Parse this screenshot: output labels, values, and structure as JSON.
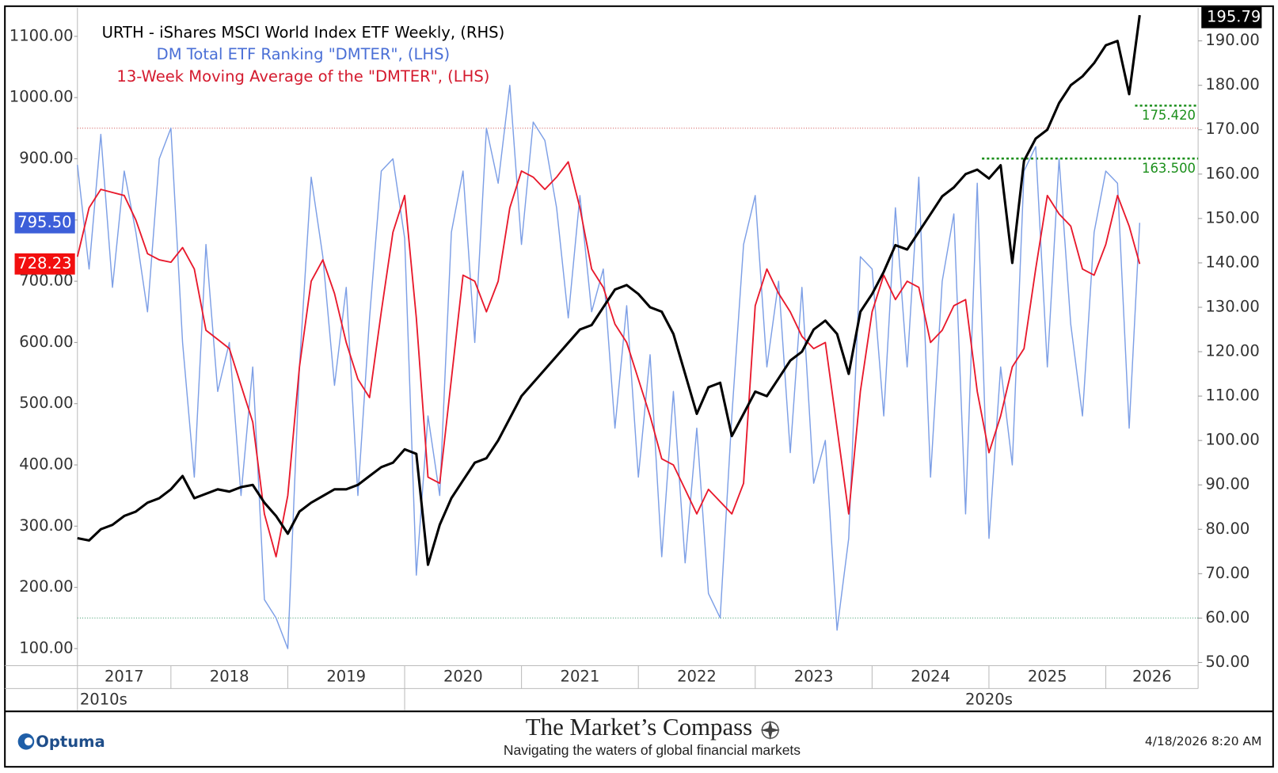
{
  "chart_data": {
    "type": "line",
    "x": [
      2017.2,
      2017.3,
      2017.4,
      2017.5,
      2017.6,
      2017.7,
      2017.8,
      2017.9,
      2018.0,
      2018.1,
      2018.2,
      2018.3,
      2018.4,
      2018.5,
      2018.6,
      2018.7,
      2018.8,
      2018.9,
      2019.0,
      2019.1,
      2019.2,
      2019.3,
      2019.4,
      2019.5,
      2019.6,
      2019.7,
      2019.8,
      2019.9,
      2020.0,
      2020.1,
      2020.2,
      2020.3,
      2020.4,
      2020.5,
      2020.6,
      2020.7,
      2020.8,
      2020.9,
      2021.0,
      2021.1,
      2021.2,
      2021.3,
      2021.4,
      2021.5,
      2021.6,
      2021.7,
      2021.8,
      2021.9,
      2022.0,
      2022.1,
      2022.2,
      2022.3,
      2022.4,
      2022.5,
      2022.6,
      2022.7,
      2022.8,
      2022.9,
      2023.0,
      2023.1,
      2023.2,
      2023.3,
      2023.4,
      2023.5,
      2023.6,
      2023.7,
      2023.8,
      2023.9,
      2024.0,
      2024.1,
      2024.2,
      2024.3,
      2024.4,
      2024.5,
      2024.6,
      2024.7,
      2024.8,
      2024.9,
      2025.0,
      2025.1,
      2025.2,
      2025.3,
      2025.4,
      2025.5,
      2025.6,
      2025.7,
      2025.8,
      2025.9,
      2026.0,
      2026.1,
      2026.2,
      2026.29
    ],
    "series": [
      {
        "name": "DM Total ETF Ranking \"DMTER\", (LHS)",
        "color": "#7d9fe6",
        "text_color": "#4a6fd6",
        "axis": "y",
        "width": 1.4,
        "last_label": "795.50",
        "label_box": "#3d5fd9",
        "values": [
          890,
          720,
          940,
          690,
          880,
          780,
          650,
          900,
          950,
          600,
          380,
          760,
          520,
          600,
          350,
          560,
          180,
          150,
          100,
          560,
          870,
          740,
          530,
          690,
          350,
          640,
          880,
          900,
          770,
          220,
          480,
          350,
          780,
          880,
          600,
          950,
          860,
          1020,
          760,
          960,
          930,
          820,
          640,
          840,
          650,
          720,
          460,
          660,
          380,
          580,
          250,
          520,
          240,
          460,
          190,
          150,
          480,
          760,
          840,
          560,
          700,
          420,
          690,
          370,
          440,
          130,
          280,
          740,
          720,
          480,
          820,
          560,
          870,
          380,
          700,
          810,
          320,
          860,
          280,
          560,
          400,
          880,
          920,
          560,
          900,
          630,
          480,
          780,
          880,
          860,
          460,
          795.5
        ]
      },
      {
        "name": "13-Week Moving Average of the \"DMTER\", (LHS)",
        "color": "#e8192c",
        "text_color": "#d41a2e",
        "axis": "y",
        "width": 1.8,
        "last_label": "728.23",
        "label_box": "#f20f0f",
        "values": [
          740,
          820,
          850,
          845,
          840,
          800,
          745,
          735,
          731,
          755,
          720,
          620,
          605,
          590,
          530,
          470,
          320,
          250,
          350,
          560,
          700,
          735,
          680,
          600,
          540,
          510,
          650,
          780,
          840,
          640,
          380,
          370,
          540,
          710,
          700,
          650,
          700,
          820,
          880,
          870,
          850,
          870,
          895,
          820,
          720,
          690,
          630,
          600,
          540,
          480,
          410,
          400,
          360,
          320,
          360,
          340,
          320,
          370,
          660,
          720,
          680,
          650,
          610,
          590,
          600,
          460,
          320,
          520,
          650,
          710,
          670,
          700,
          690,
          600,
          620,
          660,
          670,
          520,
          420,
          480,
          560,
          590,
          720,
          840,
          810,
          790,
          720,
          710,
          760,
          840,
          790,
          728.23
        ]
      },
      {
        "name": "URTH - iShares MSCI World Index ETF Weekly, (RHS)",
        "color": "#000000",
        "text_color": "#000000",
        "axis": "y2",
        "width": 3,
        "last_label": "195.79",
        "label_box": "#000000",
        "values": [
          78,
          77.5,
          80,
          81,
          83,
          84,
          86,
          87,
          89,
          92,
          87,
          88,
          89,
          88.5,
          89.5,
          90,
          86,
          83,
          79,
          84,
          86,
          87.5,
          89,
          89,
          90,
          92,
          94,
          95,
          98,
          97,
          72,
          81,
          87,
          91,
          95,
          96,
          100,
          105,
          110,
          113,
          116,
          119,
          122,
          125,
          126,
          130,
          134,
          135,
          133,
          130,
          129,
          124,
          115,
          106,
          112,
          113,
          101,
          106,
          111,
          110,
          114,
          118,
          120,
          125,
          127,
          124,
          115,
          129,
          133,
          138,
          144,
          143,
          147,
          151,
          155,
          157,
          160,
          161,
          159,
          162,
          140,
          163,
          168,
          170,
          176,
          180,
          182,
          185,
          189,
          190,
          178,
          195.79
        ]
      }
    ],
    "legend_order": [
      2,
      0,
      1
    ],
    "xlim": [
      2017.2,
      2026.79
    ],
    "xticks": [
      2017,
      2018,
      2019,
      2020,
      2021,
      2022,
      2023,
      2024,
      2025,
      2026
    ],
    "decades": [
      {
        "value": 2010,
        "label": "2010s"
      },
      {
        "value": 2020,
        "label": "2020s"
      }
    ],
    "ylim": [
      72,
      1146.6
    ],
    "yticks": [
      {
        "value": 100,
        "label": "100.00"
      },
      {
        "value": 200,
        "label": "200.00"
      },
      {
        "value": 300,
        "label": "300.00"
      },
      {
        "value": 400,
        "label": "400.00"
      },
      {
        "value": 500,
        "label": "500.00"
      },
      {
        "value": 600,
        "label": "600.00"
      },
      {
        "value": 700,
        "label": "700.00"
      },
      {
        "value": 800,
        "label": "800.00"
      },
      {
        "value": 900,
        "label": "900.00"
      },
      {
        "value": 1000,
        "label": "1000.00"
      },
      {
        "value": 1100,
        "label": "1100.00"
      }
    ],
    "y2lim": [
      49.27,
      197.45
    ],
    "y2ticks": [
      {
        "value": 50,
        "label": "50.00"
      },
      {
        "value": 60,
        "label": "60.00"
      },
      {
        "value": 70,
        "label": "70.00"
      },
      {
        "value": 80,
        "label": "80.00"
      },
      {
        "value": 90,
        "label": "90.00"
      },
      {
        "value": 100,
        "label": "100.00"
      },
      {
        "value": 110,
        "label": "110.00"
      },
      {
        "value": 120,
        "label": "120.00"
      },
      {
        "value": 130,
        "label": "130.00"
      },
      {
        "value": 140,
        "label": "140.00"
      },
      {
        "value": 150,
        "label": "150.00"
      },
      {
        "value": 160,
        "label": "160.00"
      },
      {
        "value": 170,
        "label": "170.00"
      },
      {
        "value": 180,
        "label": "180.00"
      },
      {
        "value": 190,
        "label": "190.00"
      }
    ],
    "reference_lines": [
      {
        "value": 950,
        "axis": "y",
        "color": "#d05050",
        "from": 2017.2
      },
      {
        "value": 150,
        "axis": "y",
        "color": "#3a9a6a",
        "from": 2017.2
      },
      {
        "value": 175.42,
        "label": "175.420",
        "axis": "y2",
        "color": "#1b8f1b",
        "from": 2026.25
      },
      {
        "value": 163.5,
        "label": "163.500",
        "axis": "y2",
        "color": "#1b8f1b",
        "from": 2024.94
      }
    ],
    "grid": false
  },
  "footer": {
    "brand": "Optuma",
    "title": "The Market’s Compass",
    "subtitle": "Navigating the waters of global financial markets",
    "timestamp": "4/18/2026 8:20 AM"
  }
}
